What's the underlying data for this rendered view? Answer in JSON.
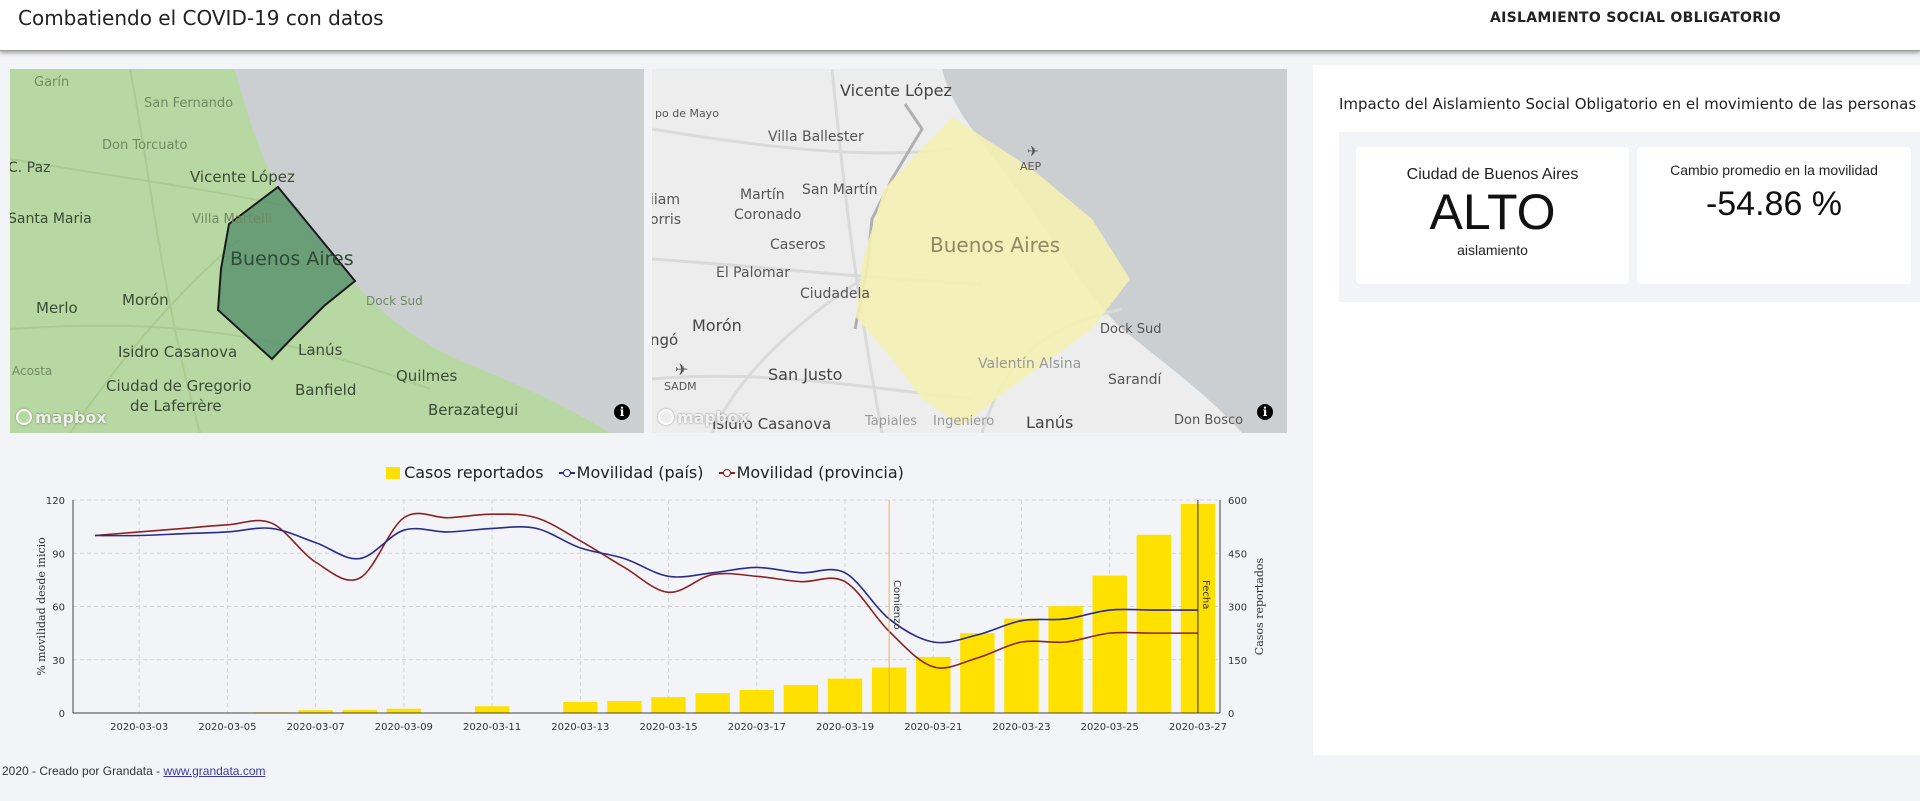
{
  "header": {
    "title": "Combatiendo el COVID-19 con datos",
    "nav_link": "AISLAMIENTO SOCIAL OBLIGATORIO"
  },
  "maps": {
    "left": {
      "labels": [
        "Garín",
        "San Fernando",
        "Don Torcuato",
        "C. Paz",
        "Vicente López",
        "Santa Maria",
        "Villa Martelli",
        "Buenos Aires",
        "Merlo",
        "Morón",
        "Dock Sud",
        "Isidro Casanova",
        "Lanús",
        "Quilmes",
        "Acosta",
        "Ciudad de Gregorio",
        "de Laferrère",
        "Banfield",
        "Berazategui"
      ],
      "region_color": "#5b9470",
      "attribution": "mapbox",
      "info": "i"
    },
    "right": {
      "labels": [
        "Vicente López",
        "po de Mayo",
        "Villa Ballester",
        "AEP",
        "San Martín",
        "Martín",
        "Coronado",
        "iiam",
        "orris",
        "Caseros",
        "Buenos Aires",
        "El Palomar",
        "Ciudadela",
        "Morón",
        "ngó",
        "Dock Sud",
        "Valentín Alsina",
        "SADM",
        "San Justo",
        "Sarandí",
        "Isidro Casanova",
        "Tapiales",
        "Ingeniero",
        "Lanús",
        "Don Bosco"
      ],
      "region_color": "#f4efb3",
      "attribution": "mapbox",
      "info": "i"
    }
  },
  "chart_data": {
    "type": "bar",
    "legend": {
      "bars": "Casos reportados",
      "line_country": "Movilidad (país)",
      "line_province": "Movilidad (provincia)"
    },
    "colors": {
      "bars": "#ffe100",
      "country": "#2a2a8c",
      "province": "#8b2222"
    },
    "ylabel_left": "% movilidad desde inicio",
    "ylabel_right": "Casos reportados",
    "yticks_left": [
      0,
      30,
      60,
      90,
      120
    ],
    "yticks_right": [
      0,
      150,
      300,
      450,
      600
    ],
    "ylim_left": [
      0,
      120
    ],
    "ylim_right": [
      0,
      600
    ],
    "xticks": [
      "2020-03-03",
      "2020-03-05",
      "2020-03-07",
      "2020-03-09",
      "2020-03-11",
      "2020-03-13",
      "2020-03-15",
      "2020-03-17",
      "2020-03-19",
      "2020-03-21",
      "2020-03-23",
      "2020-03-25",
      "2020-03-27"
    ],
    "bars": [
      {
        "date": "2020-03-06",
        "value": 2
      },
      {
        "date": "2020-03-07",
        "value": 8
      },
      {
        "date": "2020-03-08",
        "value": 9
      },
      {
        "date": "2020-03-09",
        "value": 12
      },
      {
        "date": "2020-03-11",
        "value": 19
      },
      {
        "date": "2020-03-13",
        "value": 31
      },
      {
        "date": "2020-03-14",
        "value": 34
      },
      {
        "date": "2020-03-15",
        "value": 45
      },
      {
        "date": "2020-03-16",
        "value": 56
      },
      {
        "date": "2020-03-17",
        "value": 65
      },
      {
        "date": "2020-03-18",
        "value": 79
      },
      {
        "date": "2020-03-19",
        "value": 97
      },
      {
        "date": "2020-03-20",
        "value": 128
      },
      {
        "date": "2020-03-21",
        "value": 158
      },
      {
        "date": "2020-03-22",
        "value": 225
      },
      {
        "date": "2020-03-23",
        "value": 266
      },
      {
        "date": "2020-03-24",
        "value": 301
      },
      {
        "date": "2020-03-25",
        "value": 387
      },
      {
        "date": "2020-03-26",
        "value": 502
      },
      {
        "date": "2020-03-27",
        "value": 589
      }
    ],
    "line_country": [
      [
        "2020-03-02",
        100
      ],
      [
        "2020-03-03",
        100
      ],
      [
        "2020-03-04",
        101
      ],
      [
        "2020-03-05",
        102
      ],
      [
        "2020-03-06",
        104
      ],
      [
        "2020-03-07",
        96
      ],
      [
        "2020-03-08",
        87
      ],
      [
        "2020-03-09",
        103
      ],
      [
        "2020-03-10",
        102
      ],
      [
        "2020-03-11",
        104
      ],
      [
        "2020-03-12",
        104
      ],
      [
        "2020-03-13",
        93
      ],
      [
        "2020-03-14",
        87
      ],
      [
        "2020-03-15",
        77
      ],
      [
        "2020-03-16",
        79
      ],
      [
        "2020-03-17",
        82
      ],
      [
        "2020-03-18",
        79
      ],
      [
        "2020-03-19",
        79
      ],
      [
        "2020-03-20",
        53
      ],
      [
        "2020-03-21",
        40
      ],
      [
        "2020-03-22",
        44
      ],
      [
        "2020-03-23",
        52
      ],
      [
        "2020-03-24",
        53
      ],
      [
        "2020-03-25",
        58
      ],
      [
        "2020-03-26",
        58
      ],
      [
        "2020-03-27",
        58
      ]
    ],
    "line_province": [
      [
        "2020-03-02",
        100
      ],
      [
        "2020-03-03",
        102
      ],
      [
        "2020-03-04",
        104
      ],
      [
        "2020-03-05",
        106
      ],
      [
        "2020-03-06",
        107
      ],
      [
        "2020-03-07",
        85
      ],
      [
        "2020-03-08",
        76
      ],
      [
        "2020-03-09",
        110
      ],
      [
        "2020-03-10",
        110
      ],
      [
        "2020-03-11",
        112
      ],
      [
        "2020-03-12",
        110
      ],
      [
        "2020-03-13",
        97
      ],
      [
        "2020-03-14",
        82
      ],
      [
        "2020-03-15",
        68
      ],
      [
        "2020-03-16",
        78
      ],
      [
        "2020-03-17",
        77
      ],
      [
        "2020-03-18",
        74
      ],
      [
        "2020-03-19",
        74
      ],
      [
        "2020-03-20",
        46
      ],
      [
        "2020-03-21",
        26
      ],
      [
        "2020-03-22",
        31
      ],
      [
        "2020-03-23",
        40
      ],
      [
        "2020-03-24",
        40
      ],
      [
        "2020-03-25",
        45
      ],
      [
        "2020-03-26",
        45
      ],
      [
        "2020-03-27",
        45
      ]
    ],
    "events": [
      {
        "date": "2020-03-20",
        "label": "Comienzo",
        "color": "#f2b04a"
      },
      {
        "date": "2020-03-27",
        "label": "Fecha",
        "color": "#333333"
      }
    ]
  },
  "panel": {
    "title": "Impacto del Aislamiento Social Obligatorio en el movimiento de las personas",
    "card_city": {
      "label": "Ciudad de Buenos Aires",
      "value": "ALTO",
      "sublabel": "aislamiento"
    },
    "card_mobility": {
      "label": "Cambio promedio en la movilidad",
      "value": "-54.86 %"
    }
  },
  "footer": {
    "text": "2020 - Creado por Grandata - ",
    "link": "www.grandata.com"
  }
}
